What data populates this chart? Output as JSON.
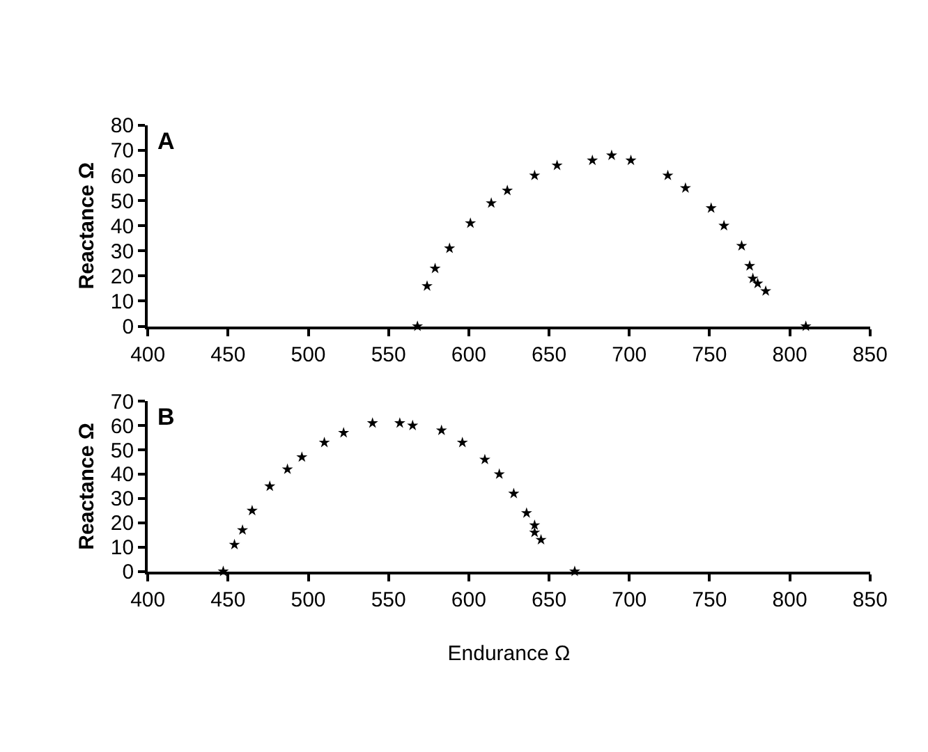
{
  "chart_data": [
    {
      "type": "scatter",
      "annotations": [
        "A"
      ],
      "ylabel": "Reactance Ω",
      "marker": "star",
      "xlim": [
        400,
        850
      ],
      "xticks": [
        400,
        450,
        500,
        550,
        600,
        650,
        700,
        750,
        800,
        850
      ],
      "ylim": [
        0,
        80
      ],
      "yticks": [
        0,
        10,
        20,
        30,
        40,
        50,
        60,
        70,
        80
      ],
      "series": [
        {
          "color": "#000000",
          "x": [
            568,
            574,
            579,
            588,
            601,
            614,
            624,
            641,
            655,
            677,
            689,
            701,
            724,
            735,
            751,
            759,
            770,
            775,
            777,
            780,
            785,
            810
          ],
          "values": [
            0,
            16,
            23,
            31,
            41,
            49,
            54,
            60,
            64,
            66,
            68,
            66,
            60,
            55,
            47,
            40,
            32,
            24,
            19,
            17,
            14,
            0
          ]
        }
      ]
    },
    {
      "type": "scatter",
      "annotations": [
        "B"
      ],
      "ylabel": "Reactance Ω",
      "xlabel": "Endurance Ω",
      "marker": "star",
      "xlim": [
        400,
        850
      ],
      "xticks": [
        400,
        450,
        500,
        550,
        600,
        650,
        700,
        750,
        800,
        850
      ],
      "ylim": [
        0,
        70
      ],
      "yticks": [
        0,
        10,
        20,
        30,
        40,
        50,
        60,
        70
      ],
      "series": [
        {
          "color": "#000000",
          "x": [
            447,
            454,
            459,
            465,
            476,
            487,
            496,
            510,
            522,
            540,
            557,
            565,
            583,
            596,
            610,
            619,
            628,
            636,
            641,
            641,
            645,
            666
          ],
          "values": [
            0,
            11,
            17,
            25,
            35,
            42,
            47,
            53,
            57,
            61,
            61,
            60,
            58,
            53,
            46,
            40,
            32,
            24,
            19,
            16,
            13,
            0
          ]
        }
      ]
    }
  ]
}
